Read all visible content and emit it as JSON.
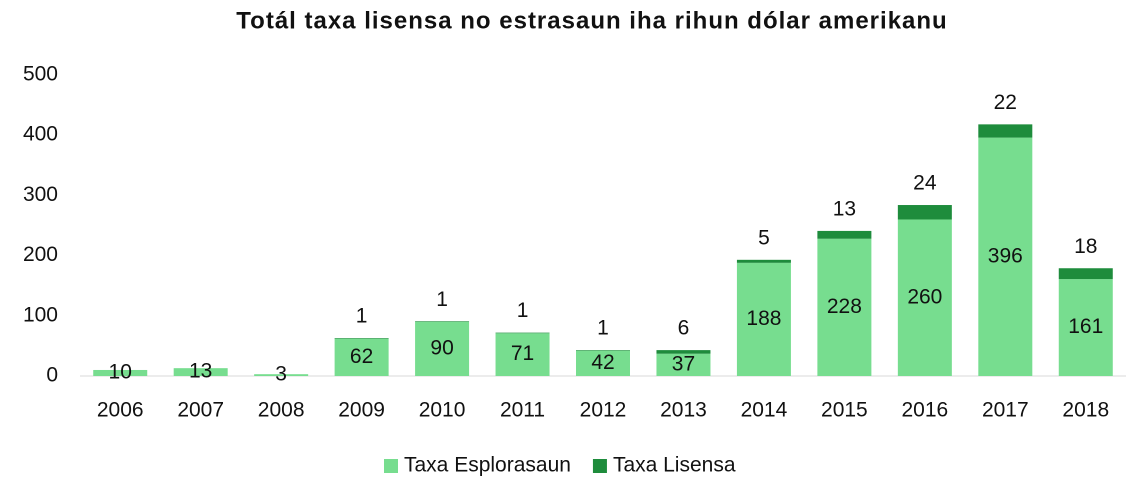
{
  "chart_data": {
    "type": "stacked_bar",
    "title": "Totál taxa lisensa no estrasaun iha rihun dólar amerikanu",
    "categories": [
      "2006",
      "2007",
      "2008",
      "2009",
      "2010",
      "2011",
      "2012",
      "2013",
      "2014",
      "2015",
      "2016",
      "2017",
      "2018"
    ],
    "series": [
      {
        "name": "Taxa Esplorasaun",
        "color": "#77dd8f",
        "values": [
          10,
          13,
          3,
          62,
          90,
          71,
          42,
          37,
          188,
          228,
          260,
          396,
          161
        ]
      },
      {
        "name": "Taxa Lisensa",
        "color": "#1e8c3c",
        "values": [
          null,
          null,
          null,
          1,
          1,
          1,
          1,
          6,
          5,
          13,
          24,
          22,
          18
        ]
      }
    ],
    "ylim": [
      0,
      500
    ],
    "yticks": [
      0,
      100,
      200,
      300,
      400,
      500
    ],
    "grid": false,
    "legend": "bottom"
  }
}
